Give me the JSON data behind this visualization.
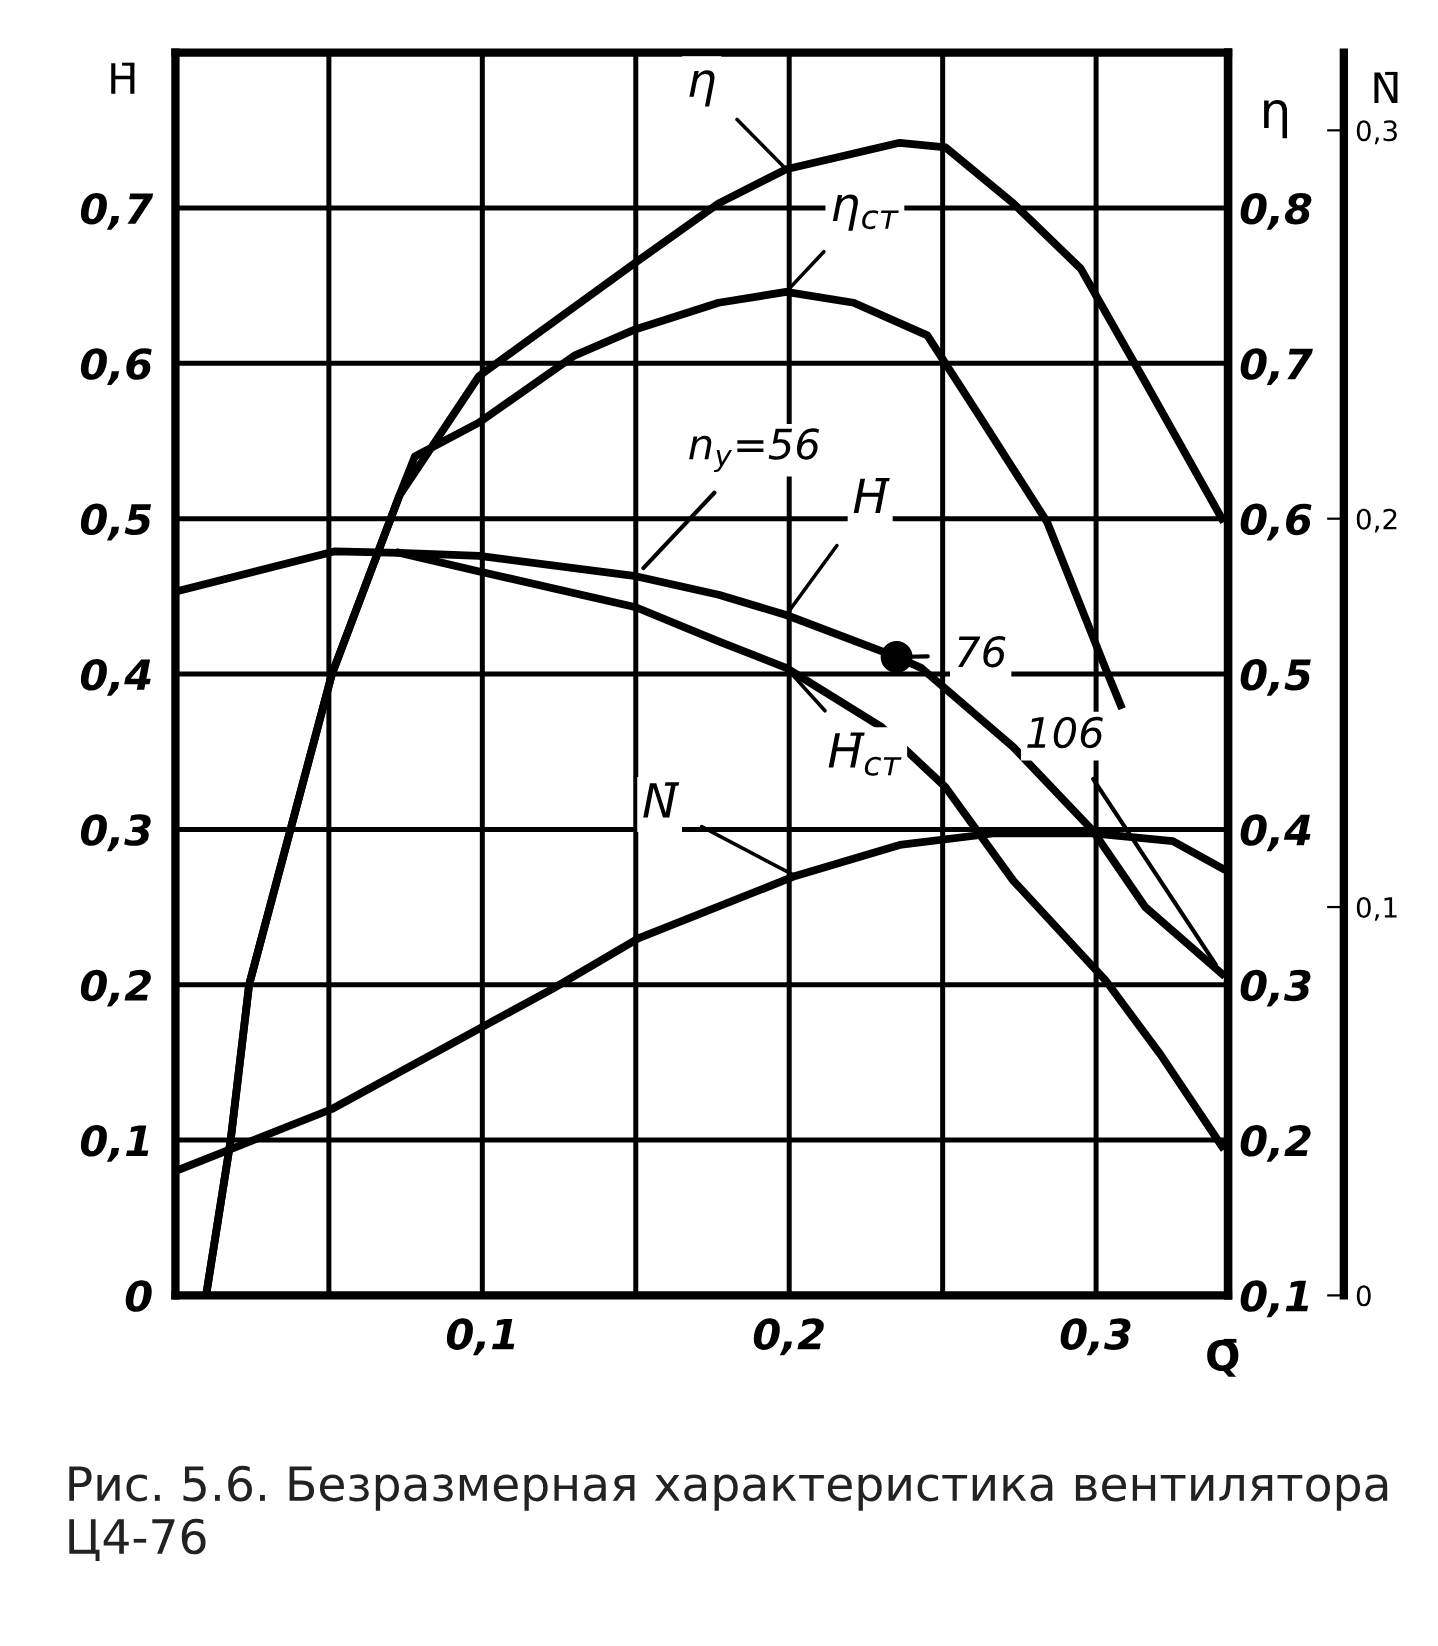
{
  "chart_data": {
    "type": "line",
    "xlabel": "Q̄",
    "ylabel": "H̄",
    "y2label": "η",
    "y3label": "N̄",
    "xlim": [
      0,
      0.343
    ],
    "ylim": [
      0,
      0.8
    ],
    "y2lim": [
      0.1,
      0.9
    ],
    "y3lim": [
      0,
      0.32
    ],
    "xticks": [
      {
        "value": 0.05,
        "label": null
      },
      {
        "value": 0.1,
        "label": "0,1"
      },
      {
        "value": 0.15,
        "label": null
      },
      {
        "value": 0.2,
        "label": "0,2"
      },
      {
        "value": 0.25,
        "label": null
      },
      {
        "value": 0.3,
        "label": "0,3"
      }
    ],
    "yticks": [
      0,
      {
        "value": 0.1,
        "label": "0,1"
      },
      {
        "value": 0.2,
        "label": "0,2"
      },
      {
        "value": 0.3,
        "label": "0,3"
      },
      {
        "value": 0.4,
        "label": "0,4"
      },
      {
        "value": 0.5,
        "label": "0,5"
      },
      {
        "value": 0.6,
        "label": "0,6"
      },
      {
        "value": 0.7,
        "label": "0,7"
      }
    ],
    "y2ticks": [
      {
        "value": 0.1,
        "label": "0,1"
      },
      {
        "value": 0.2,
        "label": "0,2"
      },
      {
        "value": 0.3,
        "label": "0,3"
      },
      {
        "value": 0.4,
        "label": "0,4"
      },
      {
        "value": 0.5,
        "label": "0,5"
      },
      {
        "value": 0.6,
        "label": "0,6"
      },
      {
        "value": 0.7,
        "label": "0,7"
      },
      {
        "value": 0.8,
        "label": "0,8"
      }
    ],
    "y3ticks": [
      0,
      {
        "value": 0.1,
        "label": "0,1"
      },
      {
        "value": 0.2,
        "label": "0,2"
      },
      {
        "value": 0.3,
        "label": "0,3"
      }
    ],
    "grid": true,
    "series": [
      {
        "name": "η",
        "color": "#000000",
        "axis": "y2",
        "x": [
          0.01,
          0.018,
          0.024,
          0.051,
          0.073,
          0.099,
          0.15,
          0.177,
          0.199,
          0.236,
          0.251,
          0.273,
          0.295,
          0.316,
          0.341
        ],
        "values": [
          0.1,
          0.2,
          0.3,
          0.5,
          0.615,
          0.692,
          0.765,
          0.803,
          0.825,
          0.842,
          0.839,
          0.803,
          0.761,
          0.688,
          0.6
        ]
      },
      {
        "name": "η$_{ст}$",
        "color": "#000000",
        "axis": "y2",
        "x": [
          0.01,
          0.018,
          0.024,
          0.051,
          0.073,
          0.078,
          0.099,
          0.13,
          0.15,
          0.177,
          0.199,
          0.221,
          0.245,
          0.262,
          0.284,
          0.303,
          0.308
        ],
        "values": [
          0.1,
          0.2,
          0.3,
          0.5,
          0.615,
          0.64,
          0.662,
          0.705,
          0.722,
          0.739,
          0.746,
          0.739,
          0.718,
          0.666,
          0.598,
          0.504,
          0.48
        ]
      },
      {
        "name": "H̄",
        "color": "#000000",
        "axis": "y",
        "x": [
          0,
          0.052,
          0.073,
          0.099,
          0.15,
          0.177,
          0.199,
          0.235,
          0.243,
          0.273,
          0.299,
          0.316,
          0.341
        ],
        "values": [
          0.453,
          0.479,
          0.478,
          0.476,
          0.463,
          0.451,
          0.438,
          0.411,
          0.404,
          0.353,
          0.299,
          0.25,
          0.207
        ]
      },
      {
        "name": "H̄$_{ст}$",
        "color": "#000000",
        "axis": "y",
        "x": [
          0.073,
          0.099,
          0.15,
          0.177,
          0.199,
          0.23,
          0.251,
          0.273,
          0.303,
          0.321,
          0.341
        ],
        "values": [
          0.478,
          0.466,
          0.443,
          0.421,
          0.404,
          0.366,
          0.327,
          0.267,
          0.203,
          0.155,
          0.096
        ]
      },
      {
        "name": "N̄",
        "color": "#000000",
        "axis": "y3",
        "x": [
          0,
          0.051,
          0.102,
          0.123,
          0.151,
          0.202,
          0.236,
          0.267,
          0.299,
          0.325,
          0.341
        ],
        "values": [
          0.032,
          0.048,
          0.07,
          0.079,
          0.092,
          0.108,
          0.116,
          0.119,
          0.119,
          0.117,
          0.11
        ]
      },
      {
        "type": "scatter",
        "color": "#000000",
        "axis": "y",
        "marker": "circle",
        "x": [
          0.235
        ],
        "values": [
          0.411
        ]
      }
    ],
    "annotations": [
      {
        "text": "n$_{y}$=56",
        "x": 0.15,
        "y": 0.463
      },
      {
        "text": "76",
        "x": 0.235,
        "y": 0.411
      },
      {
        "text": "106",
        "x": 0.341,
        "y": 0.207
      },
      "Рис. 5.6. Безразмерная характеристика вентилятора Ц4-76"
    ]
  }
}
